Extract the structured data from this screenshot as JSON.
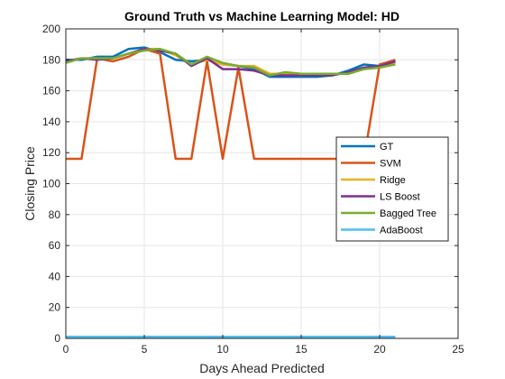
{
  "chart_data": {
    "type": "line",
    "title": "Ground Truth vs Machine Learning Model: HD",
    "xlabel": "Days Ahead Predicted",
    "ylabel": "Closing Price",
    "xlim": [
      0,
      25
    ],
    "ylim": [
      0,
      200
    ],
    "xticks": [
      "0",
      "5",
      "10",
      "15",
      "20",
      "25"
    ],
    "yticks": [
      "0",
      "20",
      "40",
      "60",
      "80",
      "100",
      "120",
      "140",
      "160",
      "180",
      "200"
    ],
    "grid": true,
    "legend_position": "right",
    "x": [
      0,
      1,
      2,
      3,
      4,
      5,
      6,
      7,
      8,
      9,
      10,
      11,
      12,
      13,
      14,
      15,
      16,
      17,
      18,
      19,
      20,
      21
    ],
    "series": [
      {
        "name": "GT",
        "color": "#0072BD",
        "values": [
          180,
          180,
          182,
          182,
          187,
          188,
          185,
          180,
          179,
          180,
          177,
          176,
          174,
          169,
          169,
          169,
          169,
          170,
          173,
          177,
          176,
          180
        ]
      },
      {
        "name": "SVM",
        "color": "#D95319",
        "values": [
          116,
          116,
          181,
          179,
          182,
          187,
          184,
          116,
          116,
          179,
          116,
          175,
          116,
          116,
          116,
          116,
          116,
          116,
          116,
          116,
          177,
          180
        ]
      },
      {
        "name": "Ridge",
        "color": "#EDB120",
        "values": [
          179,
          181,
          181,
          181,
          184,
          187,
          187,
          183,
          177,
          180,
          177,
          176,
          176,
          171,
          171,
          170,
          171,
          171,
          171,
          174,
          176,
          178
        ]
      },
      {
        "name": "LS Boost",
        "color": "#7E2F8E",
        "values": [
          179,
          181,
          180,
          181,
          184,
          187,
          186,
          184,
          176,
          181,
          174,
          174,
          173,
          170,
          170,
          170,
          170,
          170,
          172,
          175,
          176,
          179
        ]
      },
      {
        "name": "Bagged Tree",
        "color": "#77AC30",
        "values": [
          178,
          181,
          181,
          181,
          184,
          186,
          187,
          184,
          177,
          182,
          178,
          176,
          175,
          170,
          172,
          171,
          171,
          171,
          171,
          174,
          175,
          177
        ]
      },
      {
        "name": "AdaBoost",
        "color": "#4DBEEE",
        "values": [
          1,
          1,
          1,
          1,
          1,
          1,
          1,
          1,
          1,
          1,
          1,
          1,
          1,
          1,
          1,
          1,
          1,
          1,
          1,
          1,
          1,
          1
        ]
      }
    ]
  }
}
